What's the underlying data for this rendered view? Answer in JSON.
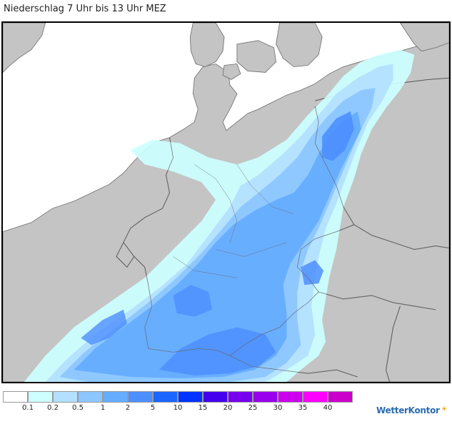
{
  "title": "Niederschlag 7 Uhr bis 13 Uhr MEZ",
  "brand": {
    "name": "WetterKontor",
    "icon": "sun-cloud-icon",
    "color": "#2b6cb0"
  },
  "colors": {
    "sea": "#ffffff",
    "land": "#c4c4c4",
    "border_line": "#555555"
  },
  "legend": {
    "labels": [
      "0.1",
      "0.2",
      "0.5",
      "1",
      "2",
      "5",
      "10",
      "15",
      "20",
      "25",
      "30",
      "35",
      "40"
    ],
    "swatches": [
      "#ffffff",
      "#ccffff",
      "#b3e0ff",
      "#8cc6ff",
      "#66adff",
      "#4d8fff",
      "#1a66ff",
      "#0033ff",
      "#4400ee",
      "#7700ee",
      "#9900ee",
      "#cc00ee",
      "#ff00ff",
      "#cc00cc"
    ]
  }
}
